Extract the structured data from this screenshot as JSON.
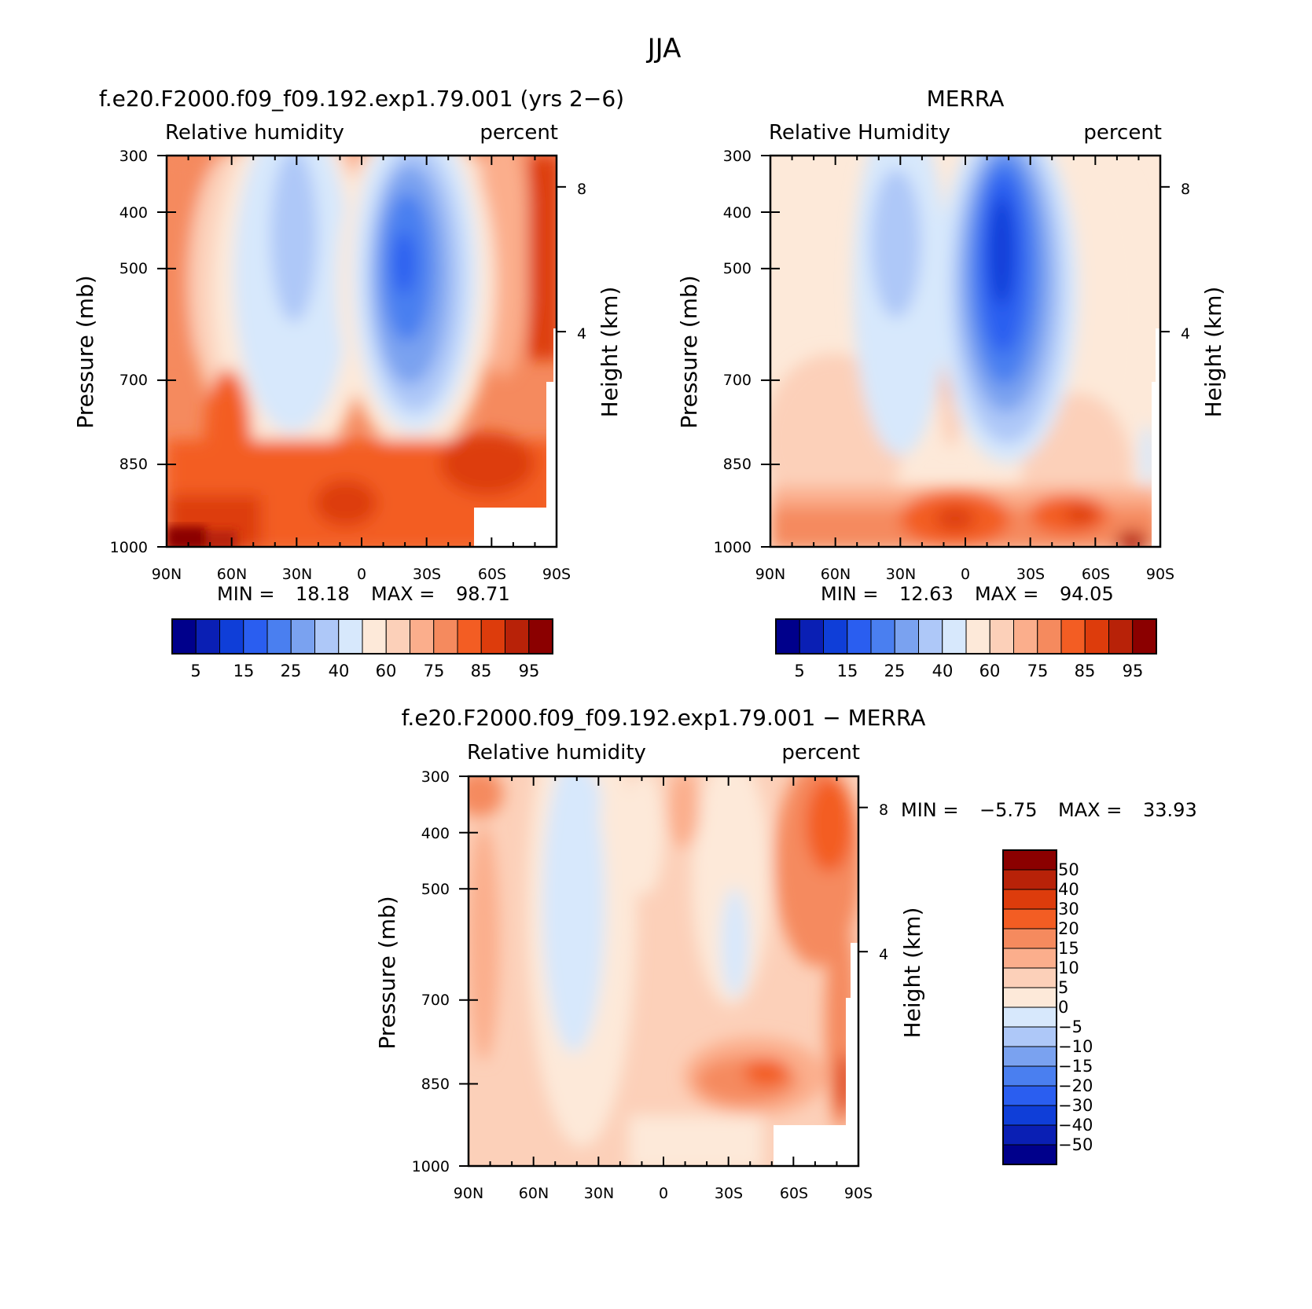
{
  "page_title": "JJA",
  "chart_data": [
    {
      "type": "heatmap",
      "title": "f.e20.F2000.f09_f09.192.exp1.79.001 (yrs 2−6)",
      "variable": "Relative humidity",
      "units": "percent",
      "xlabel": "",
      "ylabel": "Pressure (mb)",
      "ylabel_right": "Height (km)",
      "x_ticks": [
        "90N",
        "60N",
        "30N",
        "0",
        "30S",
        "60S",
        "90S"
      ],
      "y_ticks": [
        "300",
        "400",
        "500",
        "700",
        "850",
        "1000"
      ],
      "height_ticks": [
        "8",
        "4"
      ],
      "min_label": "MIN =",
      "min_value": "18.18",
      "max_label": "MAX =",
      "max_value": "98.71",
      "colorbar_labels": [
        "5",
        "15",
        "25",
        "40",
        "60",
        "75",
        "85",
        "95"
      ],
      "colorbar_orientation": "horizontal"
    },
    {
      "type": "heatmap",
      "title": "MERRA",
      "variable": "Relative Humidity",
      "units": "percent",
      "xlabel": "",
      "ylabel": "Pressure (mb)",
      "ylabel_right": "Height (km)",
      "x_ticks": [
        "90N",
        "60N",
        "30N",
        "0",
        "30S",
        "60S",
        "90S"
      ],
      "y_ticks": [
        "300",
        "400",
        "500",
        "700",
        "850",
        "1000"
      ],
      "height_ticks": [
        "8",
        "4"
      ],
      "min_label": "MIN =",
      "min_value": "12.63",
      "max_label": "MAX =",
      "max_value": "94.05",
      "colorbar_labels": [
        "5",
        "15",
        "25",
        "40",
        "60",
        "75",
        "85",
        "95"
      ],
      "colorbar_orientation": "horizontal"
    },
    {
      "type": "heatmap",
      "title": "f.e20.F2000.f09_f09.192.exp1.79.001 − MERRA",
      "variable": "Relative humidity",
      "units": "percent",
      "xlabel": "",
      "ylabel": "Pressure (mb)",
      "ylabel_right": "Height (km)",
      "x_ticks": [
        "90N",
        "60N",
        "30N",
        "0",
        "30S",
        "60S",
        "90S"
      ],
      "y_ticks": [
        "300",
        "400",
        "500",
        "700",
        "850",
        "1000"
      ],
      "height_ticks": [
        "8",
        "4"
      ],
      "min_label": "MIN =",
      "min_value": "−5.75",
      "max_label": "MAX =",
      "max_value": "33.93",
      "colorbar_labels": [
        "50",
        "40",
        "30",
        "20",
        "15",
        "10",
        "5",
        "0",
        "−5",
        "−10",
        "−15",
        "−20",
        "−30",
        "−40",
        "−50"
      ],
      "colorbar_orientation": "vertical"
    }
  ],
  "palette_abs": [
    "#00008b",
    "#0a1fb4",
    "#0f3ed8",
    "#2a5ef0",
    "#4a7ff0",
    "#7aa2f0",
    "#aec8f8",
    "#d7e8fc",
    "#fde9d9",
    "#fcd0b9",
    "#fbae8c",
    "#f58a5e",
    "#f35d23",
    "#dd3c0c",
    "#b82208",
    "#8b0000"
  ],
  "palette_diff": [
    "#00008b",
    "#0a1fb4",
    "#0f3ed8",
    "#2a5ef0",
    "#4a7ff0",
    "#7aa2f0",
    "#aec8f8",
    "#d7e8fc",
    "#fde9d9",
    "#fcd0b9",
    "#fbae8c",
    "#f58a5e",
    "#f35d23",
    "#dd3c0c",
    "#b82208",
    "#8b0000"
  ]
}
